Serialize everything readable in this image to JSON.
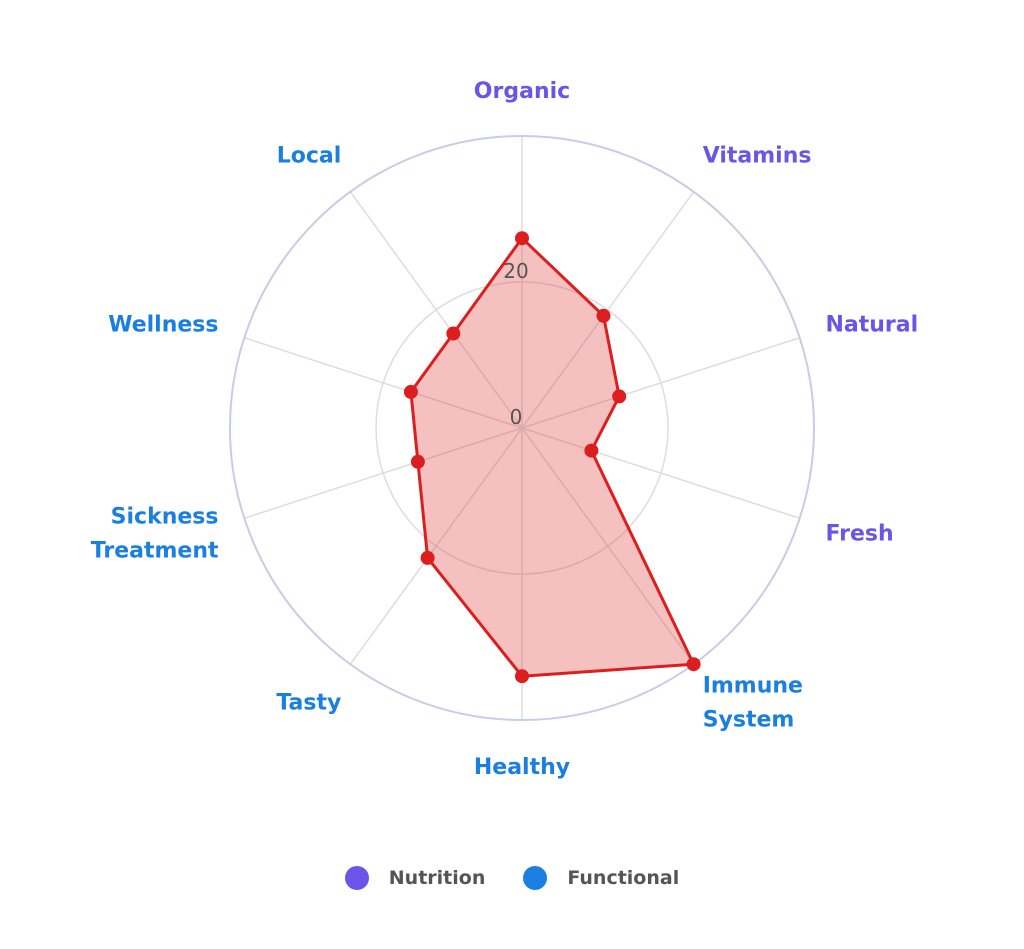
{
  "chart_data": {
    "type": "radar",
    "categories": [
      "Organic",
      "Vitamins",
      "Natural",
      "Fresh",
      "Immune System",
      "Healthy",
      "Tasty",
      "Sickness Treatment",
      "Wellness",
      "Local"
    ],
    "category_groups": [
      "Nutrition",
      "Nutrition",
      "Nutrition",
      "Nutrition",
      "Functional",
      "Functional",
      "Functional",
      "Functional",
      "Functional",
      "Functional"
    ],
    "series": [
      {
        "values": [
          26,
          19,
          14,
          10,
          40,
          34,
          22,
          15,
          16,
          16
        ]
      }
    ],
    "r_ticks": [
      0,
      20
    ],
    "r_range": [
      0,
      40
    ],
    "grid": true,
    "legend": {
      "position": "bottom-center",
      "items": [
        {
          "label": "Nutrition",
          "color": "#6b55e8"
        },
        {
          "label": "Functional",
          "color": "#1a7fe0"
        }
      ]
    },
    "colors": {
      "series_line": "#dd1e1e",
      "series_fill": "rgba(220, 60, 60, 0.32)",
      "grid_outer": "#c6cde6",
      "grid_inner": "#dddddd"
    }
  }
}
